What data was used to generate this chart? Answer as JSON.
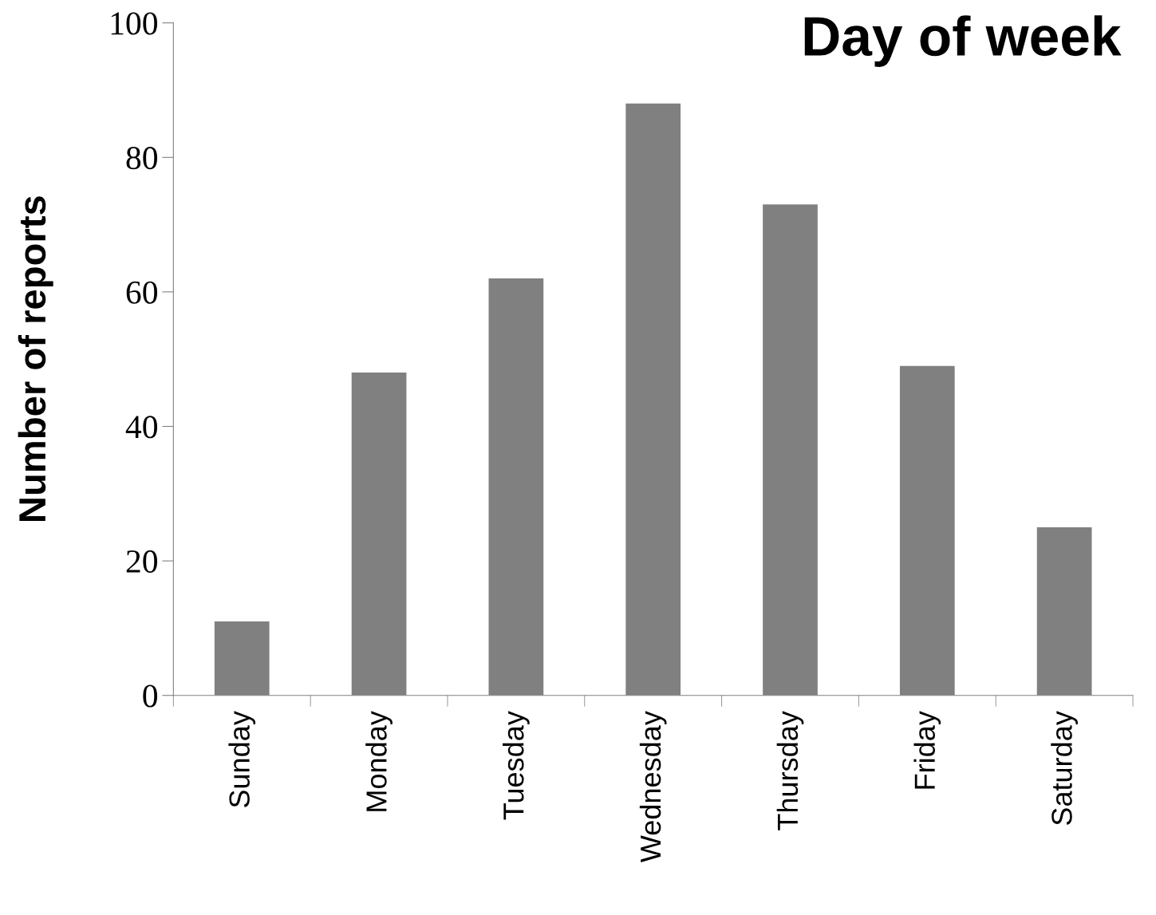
{
  "chart_data": {
    "type": "bar",
    "title": "Day of week",
    "ylabel": "Number of reports",
    "categories": [
      "Sunday",
      "Monday",
      "Tuesday",
      "Wednesday",
      "Thursday",
      "Friday",
      "Saturday"
    ],
    "values": [
      11,
      48,
      62,
      88,
      73,
      49,
      25
    ],
    "color": "#808080",
    "ylim": [
      0,
      100
    ],
    "yticks": [
      0,
      20,
      40,
      60,
      80,
      100
    ],
    "grid": false
  }
}
